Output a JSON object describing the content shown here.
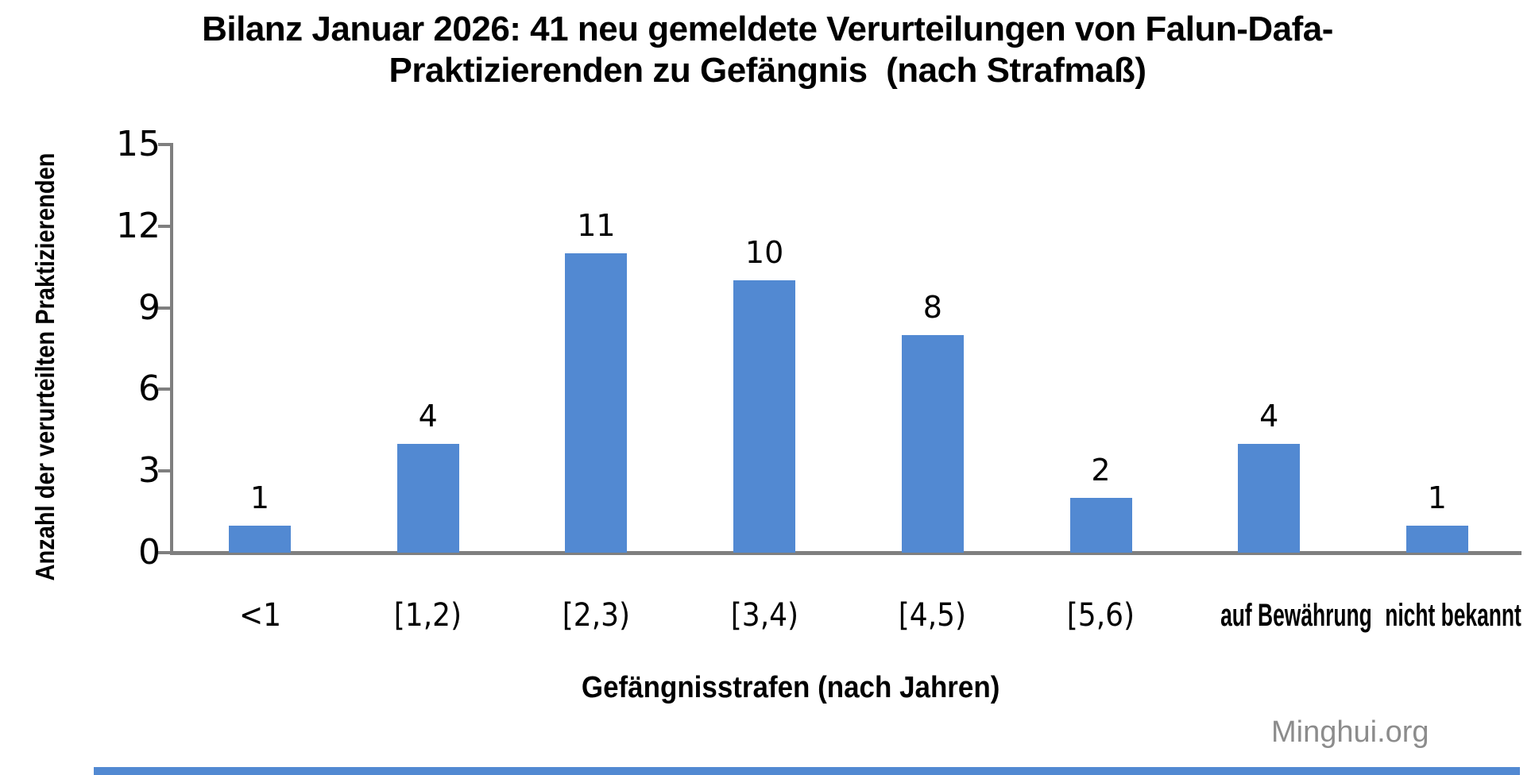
{
  "header": {
    "title_full": "Bilanz Januar 2026: 41 neu gemeldete Verurteilungen von Falun-Dafa-Praktizierenden zu Gefängnis (nach Strafmaß)"
  },
  "watermark": "Minghui.org",
  "colors": {
    "bar": "#5289d2",
    "axis": "#7f7f7f",
    "watermark_text": "#8c8c8c",
    "bottom_strip": "#5289d2",
    "text": "#000000",
    "background": "#ffffff"
  },
  "chart_data": {
    "type": "bar",
    "title": "Bilanz Januar 2026: 41 neu gemeldete Verurteilungen von Falun-Dafa-Praktizierenden zu Gefängnis (nach Strafmaß)",
    "title_lines": [
      "Bilanz Januar 2026: 41 neu gemeldete Verurteilungen von Falun-Dafa-",
      "Praktizierenden zu Gefängnis  (nach Strafmaß)"
    ],
    "categories": [
      "<1",
      "[1,2)",
      "[2,3)",
      "[3,4)",
      "[4,5)",
      "[5,6)",
      "auf Bewährung",
      "nicht bekannt"
    ],
    "values": [
      1,
      4,
      11,
      10,
      8,
      2,
      4,
      1
    ],
    "data_labels": [
      1,
      4,
      11,
      10,
      8,
      2,
      4,
      1
    ],
    "xlabel": "Gefängnisstrafen (nach Jahren)",
    "ylabel": "Anzahl der verurteilten Praktizierenden",
    "ylim": [
      0,
      15
    ],
    "yticks": [
      0,
      3,
      6,
      9,
      12,
      15
    ],
    "grid": false,
    "legend": "none",
    "bar_color": "#5289d2"
  }
}
